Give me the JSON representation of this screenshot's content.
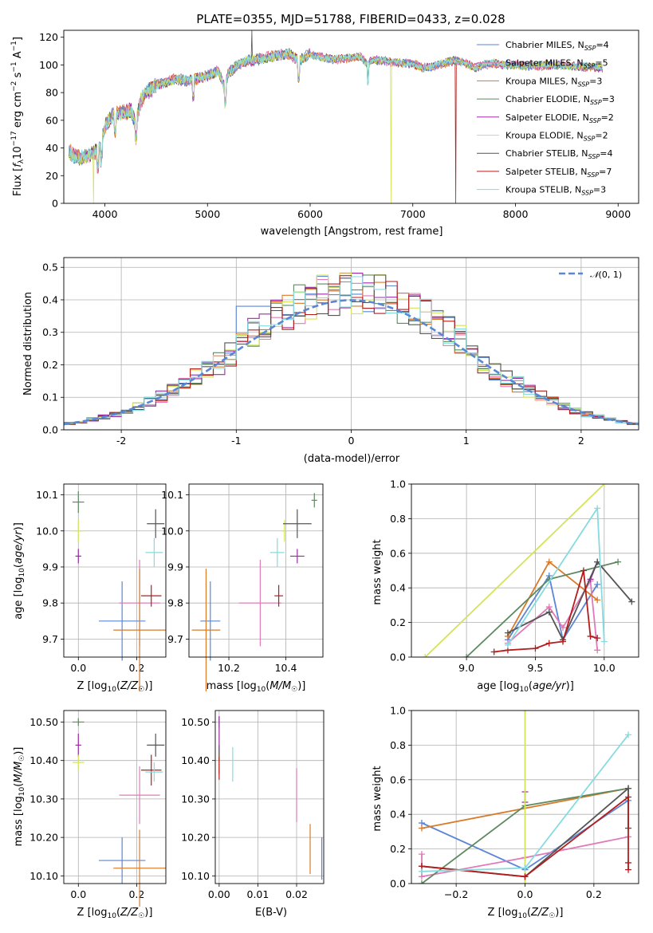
{
  "figure_title": "PLATE=0355, MJD=51788, FIBERID=0433, z=0.028",
  "colors": {
    "Chabrier MILES": "#5b86d6",
    "Salpeter MILES": "#e07ab8",
    "Kroupa MILES": "#d97a2a",
    "Chabrier ELODIE": "#5e8a62",
    "Salpeter ELODIE": "#9b2ba5",
    "Kroupa ELODIE": "#d4e35a",
    "Chabrier STELIB": "#555555",
    "Salpeter STELIB": "#b51d1d",
    "Kroupa STELIB": "#86dbdf",
    "normal": "#5b86d6"
  },
  "chart_data": [
    {
      "id": "spectrum",
      "type": "line",
      "xlabel": "wavelength [Angstrom, rest frame]",
      "ylabel": "Flux [f_λ 10^-17 erg cm^-2 s^-1 A^-1]",
      "xlim": [
        3600,
        9200
      ],
      "ylim": [
        0,
        125
      ],
      "xticks": [
        4000,
        5000,
        6000,
        7000,
        8000,
        9000
      ],
      "yticks": [
        0,
        20,
        40,
        60,
        80,
        100,
        120
      ],
      "grid": false,
      "legend_position": "upper-right",
      "series": [
        {
          "name": "Chabrier MILES",
          "nssp": "4"
        },
        {
          "name": "Salpeter MILES",
          "nssp": "5"
        },
        {
          "name": "Kroupa MILES",
          "nssp": "3"
        },
        {
          "name": "Chabrier ELODIE",
          "nssp": "3"
        },
        {
          "name": "Salpeter ELODIE",
          "nssp": "2"
        },
        {
          "name": "Kroupa ELODIE",
          "nssp": "2"
        },
        {
          "name": "Chabrier STELIB",
          "nssp": "4"
        },
        {
          "name": "Salpeter STELIB",
          "nssp": "7"
        },
        {
          "name": "Kroupa STELIB",
          "nssp": "3"
        }
      ],
      "continuum": [
        [
          3650,
          38
        ],
        [
          3700,
          34
        ],
        [
          3800,
          33
        ],
        [
          3900,
          36
        ],
        [
          3950,
          40
        ],
        [
          4000,
          55
        ],
        [
          4050,
          62
        ],
        [
          4100,
          64
        ],
        [
          4150,
          66
        ],
        [
          4200,
          65
        ],
        [
          4250,
          68
        ],
        [
          4300,
          58
        ],
        [
          4350,
          74
        ],
        [
          4400,
          80
        ],
        [
          4500,
          85
        ],
        [
          4600,
          88
        ],
        [
          4700,
          90
        ],
        [
          4800,
          88
        ],
        [
          4900,
          90
        ],
        [
          5000,
          92
        ],
        [
          5100,
          96
        ],
        [
          5170,
          84
        ],
        [
          5200,
          94
        ],
        [
          5300,
          100
        ],
        [
          5400,
          103
        ],
        [
          5500,
          104
        ],
        [
          5600,
          106
        ],
        [
          5700,
          107
        ],
        [
          5800,
          108
        ],
        [
          5890,
          102
        ],
        [
          5950,
          106
        ],
        [
          6000,
          108
        ],
        [
          6100,
          106
        ],
        [
          6200,
          104
        ],
        [
          6300,
          104
        ],
        [
          6400,
          105
        ],
        [
          6500,
          106
        ],
        [
          6563,
          100
        ],
        [
          6600,
          104
        ],
        [
          6700,
          103
        ],
        [
          6800,
          102
        ],
        [
          6900,
          101
        ],
        [
          7000,
          101
        ],
        [
          7100,
          98
        ],
        [
          7200,
          99
        ],
        [
          7300,
          101
        ],
        [
          7400,
          103
        ],
        [
          7500,
          102
        ],
        [
          7600,
          98
        ],
        [
          7700,
          100
        ],
        [
          7800,
          101
        ],
        [
          7900,
          100
        ],
        [
          8000,
          100
        ],
        [
          8200,
          99
        ],
        [
          8400,
          100
        ],
        [
          8600,
          99
        ],
        [
          8800,
          98
        ]
      ],
      "absorption_features": [
        3934,
        3969,
        4102,
        4304,
        4861,
        5175,
        5890,
        6563
      ],
      "spike_feature": {
        "x": 5430,
        "y": 125
      },
      "dips_to_zero": [
        {
          "x": 3890,
          "series": "Kroupa ELODIE"
        },
        {
          "x": 6790,
          "series": "Kroupa ELODIE"
        },
        {
          "x": 7420,
          "series": "Salpeter STELIB"
        }
      ]
    },
    {
      "id": "residual_histogram",
      "type": "line",
      "xlabel": "(data-model)/error",
      "ylabel": "Normed distribution",
      "xlim": [
        -2.5,
        2.5
      ],
      "ylim": [
        0,
        0.53
      ],
      "xticks": [
        -2,
        -1,
        0,
        1,
        2
      ],
      "yticks": [
        0,
        0.1,
        0.2,
        0.3,
        0.4,
        0.5
      ],
      "grid": true,
      "legend_position": "upper-right",
      "legend_label": "N(0,1)",
      "bin_width": 0.1
    },
    {
      "id": "age_vs_Z",
      "type": "scatter",
      "xlabel": "Z [log10(Z/Z☉)]",
      "ylabel": "age [log10(age/yr)]",
      "xlim": [
        -0.05,
        0.3
      ],
      "ylim": [
        9.65,
        10.13
      ],
      "xticks": [
        0.0,
        0.2
      ],
      "yticks": [
        9.7,
        9.8,
        9.9,
        10.0,
        10.1
      ],
      "grid": true,
      "points": [
        {
          "series": "Chabrier MILES",
          "x": 0.15,
          "y": 9.75,
          "xerr": 0.08,
          "yerr": 0.11
        },
        {
          "series": "Salpeter MILES",
          "x": 0.21,
          "y": 9.8,
          "xerr": 0.07,
          "yerr": 0.12
        },
        {
          "series": "Kroupa MILES",
          "x": 0.21,
          "y": 9.725,
          "xerr": 0.09,
          "yerr": 0.17
        },
        {
          "series": "Chabrier ELODIE",
          "x": 0.0,
          "y": 10.08,
          "xerr": 0.02,
          "yerr": 0.03
        },
        {
          "series": "Salpeter ELODIE",
          "x": 0.0,
          "y": 9.93,
          "xerr": 0.01,
          "yerr": 0.02
        },
        {
          "series": "Kroupa ELODIE",
          "x": 0.0,
          "y": 10.0,
          "xerr": 0.02,
          "yerr": 0.03
        },
        {
          "series": "Chabrier STELIB",
          "x": 0.265,
          "y": 10.02,
          "xerr": 0.03,
          "yerr": 0.04
        },
        {
          "series": "Salpeter STELIB",
          "x": 0.25,
          "y": 9.82,
          "xerr": 0.035,
          "yerr": 0.03
        },
        {
          "series": "Kroupa STELIB",
          "x": 0.26,
          "y": 9.94,
          "xerr": 0.03,
          "yerr": 0.04
        }
      ]
    },
    {
      "id": "age_vs_mass",
      "type": "scatter",
      "xlabel": "mass [log10(M/M☉)]",
      "ylabel": "",
      "xlim": [
        10.06,
        10.53
      ],
      "ylim": [
        9.65,
        10.13
      ],
      "xticks": [
        10.2,
        10.4
      ],
      "yticks": [
        9.7,
        9.8,
        9.9,
        10.0,
        10.1
      ],
      "grid": true,
      "points": [
        {
          "series": "Chabrier MILES",
          "x": 10.135,
          "y": 9.75,
          "xerr": 0.035,
          "yerr": 0.11
        },
        {
          "series": "Salpeter MILES",
          "x": 10.31,
          "y": 9.8,
          "xerr": 0.075,
          "yerr": 0.12
        },
        {
          "series": "Kroupa MILES",
          "x": 10.12,
          "y": 9.725,
          "xerr": 0.05,
          "yerr": 0.17
        },
        {
          "series": "Chabrier ELODIE",
          "x": 10.5,
          "y": 10.085,
          "xerr": 0.01,
          "yerr": 0.02
        },
        {
          "series": "Salpeter ELODIE",
          "x": 10.44,
          "y": 9.93,
          "xerr": 0.025,
          "yerr": 0.02
        },
        {
          "series": "Kroupa ELODIE",
          "x": 10.395,
          "y": 10.0,
          "xerr": 0.01,
          "yerr": 0.03
        },
        {
          "series": "Chabrier STELIB",
          "x": 10.44,
          "y": 10.02,
          "xerr": 0.05,
          "yerr": 0.04
        },
        {
          "series": "Salpeter STELIB",
          "x": 10.375,
          "y": 9.82,
          "xerr": 0.015,
          "yerr": 0.03
        },
        {
          "series": "Kroupa STELIB",
          "x": 10.37,
          "y": 9.94,
          "xerr": 0.025,
          "yerr": 0.04
        }
      ]
    },
    {
      "id": "weight_vs_age",
      "type": "line",
      "xlabel": "age [log10(age/yr)]",
      "ylabel": "mass weight",
      "xlim": [
        8.6,
        10.25
      ],
      "ylim": [
        0,
        1.0
      ],
      "xticks": [
        9.0,
        9.5,
        10.0
      ],
      "yticks": [
        0.0,
        0.2,
        0.4,
        0.6,
        0.8,
        1.0
      ],
      "grid": true,
      "series": [
        {
          "name": "Chabrier MILES",
          "x": [
            9.3,
            9.6,
            9.7,
            9.95
          ],
          "y": [
            0.1,
            0.47,
            0.1,
            0.42
          ]
        },
        {
          "name": "Salpeter MILES",
          "x": [
            9.3,
            9.6,
            9.7,
            9.9,
            9.95
          ],
          "y": [
            0.08,
            0.29,
            0.17,
            0.44,
            0.04
          ]
        },
        {
          "name": "Kroupa MILES",
          "x": [
            9.3,
            9.6,
            9.95
          ],
          "y": [
            0.12,
            0.55,
            0.33
          ]
        },
        {
          "name": "Chabrier ELODIE",
          "x": [
            9.0,
            9.6,
            10.1
          ],
          "y": [
            0.0,
            0.45,
            0.55
          ]
        },
        {
          "name": "Salpeter ELODIE",
          "x": [
            9.95,
            9.9
          ],
          "y": [
            0.55,
            0.45
          ]
        },
        {
          "name": "Kroupa ELODIE",
          "x": [
            8.7,
            10.0
          ],
          "y": [
            0.0,
            1.0
          ]
        },
        {
          "name": "Chabrier STELIB",
          "x": [
            9.3,
            9.6,
            9.7,
            9.95,
            10.2
          ],
          "y": [
            0.14,
            0.26,
            0.1,
            0.55,
            0.32
          ]
        },
        {
          "name": "Salpeter STELIB",
          "x": [
            9.2,
            9.3,
            9.5,
            9.6,
            9.7,
            9.85,
            9.9,
            9.95
          ],
          "y": [
            0.03,
            0.04,
            0.05,
            0.08,
            0.09,
            0.5,
            0.12,
            0.11
          ]
        },
        {
          "name": "Kroupa STELIB",
          "x": [
            9.3,
            9.95,
            10.0
          ],
          "y": [
            0.07,
            0.86,
            0.09
          ]
        }
      ]
    },
    {
      "id": "mass_vs_Z",
      "type": "scatter",
      "xlabel": "Z [log10(Z/Z☉)]",
      "ylabel": "mass [log10(M/M☉)]",
      "xlim": [
        -0.05,
        0.3
      ],
      "ylim": [
        10.08,
        10.53
      ],
      "xticks": [
        0.0,
        0.2
      ],
      "yticks": [
        10.1,
        10.2,
        10.3,
        10.4,
        10.5
      ],
      "grid": true,
      "points": [
        {
          "series": "Chabrier MILES",
          "x": 0.15,
          "y": 10.14,
          "xerr": 0.08,
          "yerr": 0.06
        },
        {
          "series": "Salpeter MILES",
          "x": 0.21,
          "y": 10.31,
          "xerr": 0.07,
          "yerr": 0.075
        },
        {
          "series": "Kroupa MILES",
          "x": 0.21,
          "y": 10.12,
          "xerr": 0.09,
          "yerr": 0.1
        },
        {
          "series": "Chabrier ELODIE",
          "x": 0.0,
          "y": 10.5,
          "xerr": 0.02,
          "yerr": 0.01
        },
        {
          "series": "Salpeter ELODIE",
          "x": 0.0,
          "y": 10.44,
          "xerr": 0.01,
          "yerr": 0.03
        },
        {
          "series": "Kroupa ELODIE",
          "x": 0.0,
          "y": 10.395,
          "xerr": 0.02,
          "yerr": 0.02
        },
        {
          "series": "Chabrier STELIB",
          "x": 0.265,
          "y": 10.44,
          "xerr": 0.03,
          "yerr": 0.03
        },
        {
          "series": "Salpeter STELIB",
          "x": 0.25,
          "y": 10.375,
          "xerr": 0.035,
          "yerr": 0.04
        },
        {
          "series": "Kroupa STELIB",
          "x": 0.26,
          "y": 10.37,
          "xerr": 0.03,
          "yerr": 0.025
        }
      ]
    },
    {
      "id": "mass_vs_ebv",
      "type": "scatter",
      "xlabel": "E(B-V)",
      "ylabel": "",
      "xlim": [
        -0.001,
        0.027
      ],
      "ylim": [
        10.08,
        10.53
      ],
      "xticks": [
        0.0,
        0.01,
        0.02
      ],
      "yticks": [
        10.1,
        10.2,
        10.3,
        10.4,
        10.5
      ],
      "grid": true,
      "points": [
        {
          "series": "Chabrier MILES",
          "x": 0.0265,
          "y": 10.145,
          "xerr": 0,
          "yerr": 0.055
        },
        {
          "series": "Salpeter MILES",
          "x": 0.02,
          "y": 10.31,
          "xerr": 0,
          "yerr": 0.07
        },
        {
          "series": "Kroupa MILES",
          "x": 0.0235,
          "y": 10.17,
          "xerr": 0,
          "yerr": 0.065
        },
        {
          "series": "Chabrier ELODIE",
          "x": 0.0,
          "y": 10.5,
          "xerr": 0,
          "yerr": 0.015
        },
        {
          "series": "Salpeter ELODIE",
          "x": 0.0,
          "y": 10.44,
          "xerr": 0,
          "yerr": 0.075
        },
        {
          "series": "Kroupa ELODIE",
          "x": 0.0,
          "y": 10.395,
          "xerr": 0,
          "yerr": 0.02
        },
        {
          "series": "Chabrier STELIB",
          "x": 0.0,
          "y": 10.42,
          "xerr": 0,
          "yerr": 0.02
        },
        {
          "series": "Salpeter STELIB",
          "x": 0.0,
          "y": 10.38,
          "xerr": 0,
          "yerr": 0.03
        },
        {
          "series": "Kroupa STELIB",
          "x": 0.0035,
          "y": 10.39,
          "xerr": 0,
          "yerr": 0.045
        }
      ]
    },
    {
      "id": "weight_vs_Z",
      "type": "line",
      "xlabel": "Z [log10(Z/Z☉)]",
      "ylabel": "mass weight",
      "xlim": [
        -0.33,
        0.33
      ],
      "ylim": [
        0,
        1.0
      ],
      "xticks": [
        -0.2,
        0.0,
        0.2
      ],
      "yticks": [
        0.0,
        0.2,
        0.4,
        0.6,
        0.8,
        1.0
      ],
      "grid": true,
      "series": [
        {
          "name": "Chabrier MILES",
          "x": [
            -0.3,
            0.0,
            0.3
          ],
          "y": [
            0.35,
            0.08,
            0.48
          ]
        },
        {
          "name": "Salpeter MILES",
          "x": [
            -0.3,
            -0.3,
            0.0,
            0.3
          ],
          "y": [
            0.17,
            0.04,
            0.15,
            0.27
          ]
        },
        {
          "name": "Kroupa MILES",
          "x": [
            -0.3,
            0.3
          ],
          "y": [
            0.32,
            0.55
          ]
        },
        {
          "name": "Chabrier ELODIE",
          "x": [
            -0.3,
            0.0,
            0.3
          ],
          "y": [
            0.0,
            0.45,
            0.55
          ]
        },
        {
          "name": "Salpeter ELODIE",
          "x": [
            0.0,
            0.0
          ],
          "y": [
            0.53,
            0.47
          ]
        },
        {
          "name": "Kroupa ELODIE",
          "x": [
            0.0,
            0.0
          ],
          "y": [
            0.0,
            1.0
          ]
        },
        {
          "name": "Chabrier STELIB",
          "x": [
            -0.3,
            0.0,
            0.3,
            0.3
          ],
          "y": [
            0.1,
            0.04,
            0.55,
            0.32
          ]
        },
        {
          "name": "Salpeter STELIB",
          "x": [
            -0.3,
            0.0,
            0.3,
            0.3,
            0.3
          ],
          "y": [
            0.1,
            0.04,
            0.5,
            0.12,
            0.08
          ]
        },
        {
          "name": "Kroupa STELIB",
          "x": [
            -0.3,
            0.0,
            0.3
          ],
          "y": [
            0.07,
            0.09,
            0.86
          ]
        }
      ]
    }
  ]
}
